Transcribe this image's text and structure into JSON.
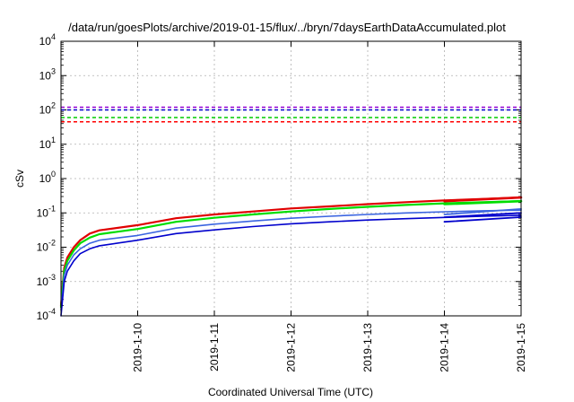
{
  "chart_data": {
    "type": "line",
    "title": "/data/run/goesPlots/archive/2019-01-15/flux/../bryn/7daysEarthDataAccumulated.plot",
    "xlabel": "Coordinated Universal Time (UTC)",
    "ylabel": "cSv",
    "y_scale": "log",
    "ylim": [
      0.0001,
      10000
    ],
    "y_ticks": [
      {
        "value": 0.0001,
        "base": "10",
        "exp": "-4"
      },
      {
        "value": 0.001,
        "base": "10",
        "exp": "-3"
      },
      {
        "value": 0.01,
        "base": "10",
        "exp": "-2"
      },
      {
        "value": 0.1,
        "base": "10",
        "exp": "-1"
      },
      {
        "value": 1,
        "base": "10",
        "exp": "0"
      },
      {
        "value": 10,
        "base": "10",
        "exp": "1"
      },
      {
        "value": 100,
        "base": "10",
        "exp": "2"
      },
      {
        "value": 1000,
        "base": "10",
        "exp": "3"
      },
      {
        "value": 10000,
        "base": "10",
        "exp": "4"
      }
    ],
    "xlim": [
      "2019-01-09T00:00",
      "2019-01-15T00:00"
    ],
    "x_tick_labels": [
      "2019-1-10",
      "2019-1-11",
      "2019-1-12",
      "2019-1-13",
      "2019-1-14",
      "2019-1-15"
    ],
    "grid": true,
    "threshold_lines": [
      {
        "value": 120,
        "color": "#9400d3",
        "style": "dashed"
      },
      {
        "value": 100,
        "color": "#0000cd",
        "style": "dashed"
      },
      {
        "value": 60,
        "color": "#00cc00",
        "style": "dashed"
      },
      {
        "value": 45,
        "color": "#ff0000",
        "style": "dashed"
      }
    ],
    "series": [
      {
        "color": "#e00000",
        "width": 2.2,
        "x": [
          "2019-01-09T00:00",
          "2019-01-09T01:00",
          "2019-01-09T02:00",
          "2019-01-09T04:00",
          "2019-01-09T06:00",
          "2019-01-09T09:00",
          "2019-01-09T12:00",
          "2019-01-10T00:00",
          "2019-01-10T12:00",
          "2019-01-11T00:00",
          "2019-01-11T12:00",
          "2019-01-12T00:00",
          "2019-01-12T12:00",
          "2019-01-13T00:00",
          "2019-01-13T12:00",
          "2019-01-14T00:00",
          "2019-01-14T12:00",
          "2019-01-15T00:00"
        ],
        "y": [
          0.0002,
          0.0025,
          0.005,
          0.01,
          0.016,
          0.025,
          0.031,
          0.044,
          0.07,
          0.09,
          0.11,
          0.135,
          0.155,
          0.18,
          0.205,
          0.23,
          0.255,
          0.28
        ]
      },
      {
        "color": "#00dd00",
        "width": 2.2,
        "x": [
          "2019-01-09T00:00",
          "2019-01-09T01:00",
          "2019-01-09T02:00",
          "2019-01-09T04:00",
          "2019-01-09T06:00",
          "2019-01-09T09:00",
          "2019-01-09T12:00",
          "2019-01-10T00:00",
          "2019-01-10T12:00",
          "2019-01-11T00:00",
          "2019-01-11T12:00",
          "2019-01-12T00:00",
          "2019-01-12T12:00",
          "2019-01-13T00:00",
          "2019-01-13T12:00",
          "2019-01-14T00:00",
          "2019-01-14T12:00",
          "2019-01-15T00:00"
        ],
        "y": [
          0.00018,
          0.002,
          0.004,
          0.008,
          0.013,
          0.019,
          0.024,
          0.034,
          0.055,
          0.072,
          0.09,
          0.11,
          0.13,
          0.15,
          0.17,
          0.19,
          0.205,
          0.22
        ]
      },
      {
        "color": "#3a64e0",
        "width": 1.6,
        "x": [
          "2019-01-09T00:00",
          "2019-01-09T01:00",
          "2019-01-09T02:00",
          "2019-01-09T04:00",
          "2019-01-09T06:00",
          "2019-01-09T09:00",
          "2019-01-09T12:00",
          "2019-01-10T00:00",
          "2019-01-10T12:00",
          "2019-01-11T00:00",
          "2019-01-11T12:00",
          "2019-01-12T00:00",
          "2019-01-12T12:00",
          "2019-01-13T00:00",
          "2019-01-13T12:00",
          "2019-01-14T00:00",
          "2019-01-14T12:00",
          "2019-01-15T00:00"
        ],
        "y": [
          0.00015,
          0.0015,
          0.003,
          0.006,
          0.009,
          0.013,
          0.016,
          0.022,
          0.036,
          0.047,
          0.058,
          0.07,
          0.08,
          0.09,
          0.1,
          0.108,
          0.115,
          0.12
        ]
      },
      {
        "color": "#0000cc",
        "width": 1.6,
        "x": [
          "2019-01-09T00:00",
          "2019-01-09T01:00",
          "2019-01-09T02:00",
          "2019-01-09T04:00",
          "2019-01-09T06:00",
          "2019-01-09T09:00",
          "2019-01-09T12:00",
          "2019-01-10T00:00",
          "2019-01-10T12:00",
          "2019-01-11T00:00",
          "2019-01-11T12:00",
          "2019-01-12T00:00",
          "2019-01-12T12:00",
          "2019-01-13T00:00",
          "2019-01-13T12:00",
          "2019-01-14T00:00",
          "2019-01-14T12:00",
          "2019-01-15T00:00"
        ],
        "y": [
          0.0001,
          0.001,
          0.002,
          0.004,
          0.0065,
          0.009,
          0.011,
          0.016,
          0.025,
          0.032,
          0.04,
          0.048,
          0.055,
          0.062,
          0.068,
          0.074,
          0.08,
          0.085
        ]
      },
      {
        "color": "#e00000",
        "width": 2.6,
        "x": [
          "2019-01-14T00:00",
          "2019-01-15T00:00"
        ],
        "y": [
          0.22,
          0.28
        ]
      },
      {
        "color": "#00dd00",
        "width": 2.6,
        "x": [
          "2019-01-14T00:00",
          "2019-01-15T00:00"
        ],
        "y": [
          0.18,
          0.22
        ]
      },
      {
        "color": "#3a64e0",
        "width": 1.8,
        "x": [
          "2019-01-14T00:00",
          "2019-01-15T00:00"
        ],
        "y": [
          0.09,
          0.13
        ]
      },
      {
        "color": "#0000cc",
        "width": 1.8,
        "x": [
          "2019-01-14T00:00",
          "2019-01-15T00:00"
        ],
        "y": [
          0.075,
          0.1
        ]
      },
      {
        "color": "#0000cc",
        "width": 1.8,
        "x": [
          "2019-01-14T00:00",
          "2019-01-15T00:00"
        ],
        "y": [
          0.055,
          0.075
        ]
      }
    ]
  }
}
